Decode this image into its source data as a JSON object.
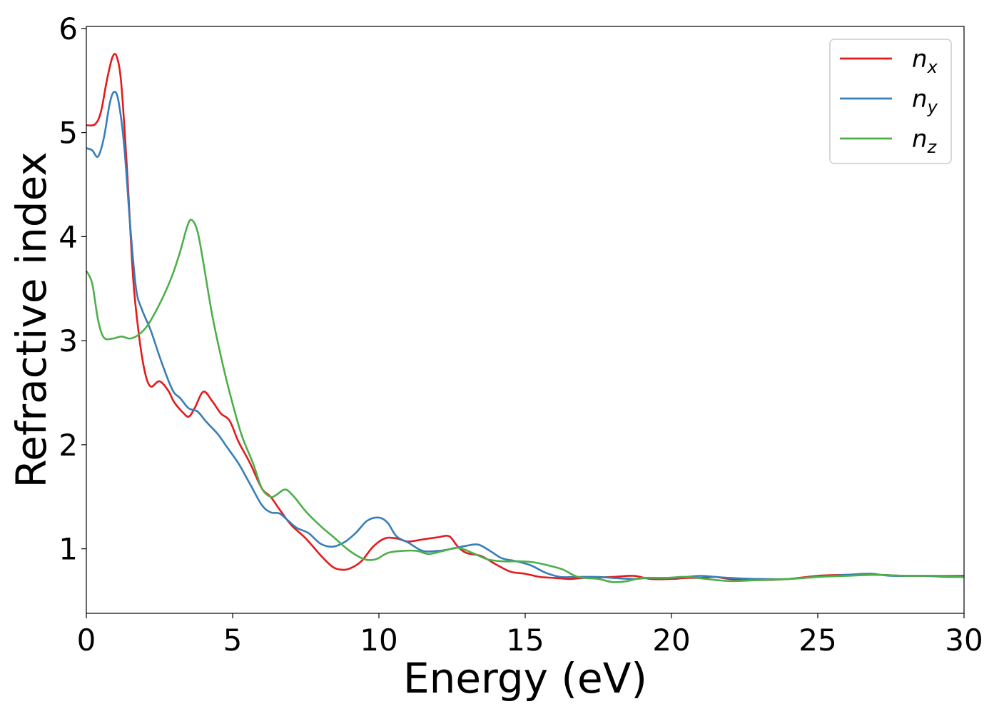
{
  "chart_data": {
    "type": "line",
    "title": "",
    "xlabel": "Energy (eV)",
    "ylabel": "Refractive index",
    "xlim": [
      0,
      30
    ],
    "ylim": [
      0.38,
      6.02
    ],
    "xticks": [
      0,
      5,
      10,
      15,
      20,
      25,
      30
    ],
    "yticks": [
      1,
      2,
      3,
      4,
      5,
      6
    ],
    "grid": false,
    "legend_position": "top-right",
    "series": [
      {
        "name": "n",
        "subscript": "x",
        "color": "#e41a1c",
        "points": [
          [
            0,
            5.07
          ],
          [
            0.3,
            5.08
          ],
          [
            0.5,
            5.2
          ],
          [
            0.7,
            5.5
          ],
          [
            0.9,
            5.73
          ],
          [
            1.05,
            5.72
          ],
          [
            1.2,
            5.45
          ],
          [
            1.4,
            4.6
          ],
          [
            1.6,
            3.6
          ],
          [
            1.8,
            3.05
          ],
          [
            2.0,
            2.7
          ],
          [
            2.2,
            2.56
          ],
          [
            2.5,
            2.61
          ],
          [
            2.8,
            2.52
          ],
          [
            3.0,
            2.41
          ],
          [
            3.3,
            2.31
          ],
          [
            3.5,
            2.27
          ],
          [
            3.7,
            2.35
          ],
          [
            4.0,
            2.51
          ],
          [
            4.3,
            2.42
          ],
          [
            4.6,
            2.3
          ],
          [
            4.9,
            2.23
          ],
          [
            5.2,
            2.03
          ],
          [
            5.6,
            1.82
          ],
          [
            6.0,
            1.58
          ],
          [
            6.3,
            1.5
          ],
          [
            6.6,
            1.38
          ],
          [
            7.0,
            1.23
          ],
          [
            7.5,
            1.1
          ],
          [
            8.0,
            0.94
          ],
          [
            8.4,
            0.83
          ],
          [
            8.7,
            0.8
          ],
          [
            9.0,
            0.81
          ],
          [
            9.4,
            0.88
          ],
          [
            9.8,
            1.02
          ],
          [
            10.2,
            1.1
          ],
          [
            10.6,
            1.1
          ],
          [
            11.0,
            1.07
          ],
          [
            11.5,
            1.09
          ],
          [
            12.0,
            1.11
          ],
          [
            12.4,
            1.12
          ],
          [
            12.7,
            1.02
          ],
          [
            13.0,
            0.96
          ],
          [
            13.5,
            0.93
          ],
          [
            14.0,
            0.85
          ],
          [
            14.5,
            0.78
          ],
          [
            15.0,
            0.76
          ],
          [
            15.5,
            0.73
          ],
          [
            16.0,
            0.72
          ],
          [
            16.5,
            0.71
          ],
          [
            17.0,
            0.72
          ],
          [
            18.0,
            0.73
          ],
          [
            18.7,
            0.74
          ],
          [
            19.3,
            0.71
          ],
          [
            20.0,
            0.71
          ],
          [
            20.5,
            0.72
          ],
          [
            21.0,
            0.72
          ],
          [
            21.5,
            0.73
          ],
          [
            22.0,
            0.71
          ],
          [
            23.0,
            0.7
          ],
          [
            24.0,
            0.71
          ],
          [
            25.0,
            0.74
          ],
          [
            26.0,
            0.75
          ],
          [
            27.0,
            0.75
          ],
          [
            28.0,
            0.74
          ],
          [
            29.0,
            0.74
          ],
          [
            30.0,
            0.74
          ]
        ]
      },
      {
        "name": "n",
        "subscript": "y",
        "color": "#377eb8",
        "points": [
          [
            0,
            4.85
          ],
          [
            0.2,
            4.83
          ],
          [
            0.4,
            4.77
          ],
          [
            0.6,
            4.95
          ],
          [
            0.8,
            5.28
          ],
          [
            0.95,
            5.39
          ],
          [
            1.1,
            5.3
          ],
          [
            1.3,
            4.85
          ],
          [
            1.5,
            4.1
          ],
          [
            1.7,
            3.5
          ],
          [
            1.9,
            3.3
          ],
          [
            2.2,
            3.1
          ],
          [
            2.5,
            2.85
          ],
          [
            2.8,
            2.62
          ],
          [
            3.0,
            2.5
          ],
          [
            3.2,
            2.45
          ],
          [
            3.5,
            2.35
          ],
          [
            3.8,
            2.32
          ],
          [
            4.1,
            2.22
          ],
          [
            4.5,
            2.1
          ],
          [
            4.8,
            1.98
          ],
          [
            5.2,
            1.82
          ],
          [
            5.6,
            1.62
          ],
          [
            6.0,
            1.42
          ],
          [
            6.3,
            1.35
          ],
          [
            6.6,
            1.34
          ],
          [
            6.9,
            1.27
          ],
          [
            7.2,
            1.2
          ],
          [
            7.6,
            1.15
          ],
          [
            8.0,
            1.05
          ],
          [
            8.4,
            1.02
          ],
          [
            8.8,
            1.06
          ],
          [
            9.2,
            1.15
          ],
          [
            9.6,
            1.27
          ],
          [
            10.0,
            1.3
          ],
          [
            10.3,
            1.25
          ],
          [
            10.6,
            1.12
          ],
          [
            11.0,
            1.06
          ],
          [
            11.5,
            0.98
          ],
          [
            12.0,
            0.98
          ],
          [
            12.5,
            1.0
          ],
          [
            13.0,
            1.03
          ],
          [
            13.4,
            1.04
          ],
          [
            13.8,
            0.98
          ],
          [
            14.2,
            0.91
          ],
          [
            14.7,
            0.88
          ],
          [
            15.2,
            0.84
          ],
          [
            15.7,
            0.77
          ],
          [
            16.2,
            0.73
          ],
          [
            16.8,
            0.73
          ],
          [
            17.5,
            0.73
          ],
          [
            18.0,
            0.72
          ],
          [
            18.7,
            0.71
          ],
          [
            19.2,
            0.72
          ],
          [
            20.0,
            0.72
          ],
          [
            20.5,
            0.73
          ],
          [
            21.0,
            0.74
          ],
          [
            21.5,
            0.73
          ],
          [
            22.0,
            0.72
          ],
          [
            23.0,
            0.71
          ],
          [
            24.0,
            0.71
          ],
          [
            25.0,
            0.73
          ],
          [
            26.0,
            0.75
          ],
          [
            26.8,
            0.76
          ],
          [
            27.5,
            0.74
          ],
          [
            28.5,
            0.74
          ],
          [
            29.5,
            0.73
          ],
          [
            30.0,
            0.73
          ]
        ]
      },
      {
        "name": "n",
        "subscript": "z",
        "color": "#4daf4a",
        "points": [
          [
            0,
            3.67
          ],
          [
            0.2,
            3.55
          ],
          [
            0.4,
            3.2
          ],
          [
            0.6,
            3.03
          ],
          [
            0.9,
            3.02
          ],
          [
            1.2,
            3.04
          ],
          [
            1.5,
            3.02
          ],
          [
            1.8,
            3.06
          ],
          [
            2.1,
            3.15
          ],
          [
            2.5,
            3.35
          ],
          [
            2.9,
            3.6
          ],
          [
            3.2,
            3.85
          ],
          [
            3.45,
            4.1
          ],
          [
            3.6,
            4.16
          ],
          [
            3.8,
            4.05
          ],
          [
            4.0,
            3.75
          ],
          [
            4.3,
            3.25
          ],
          [
            4.6,
            2.85
          ],
          [
            4.9,
            2.5
          ],
          [
            5.3,
            2.1
          ],
          [
            5.7,
            1.82
          ],
          [
            6.0,
            1.58
          ],
          [
            6.3,
            1.5
          ],
          [
            6.5,
            1.52
          ],
          [
            6.8,
            1.57
          ],
          [
            7.1,
            1.5
          ],
          [
            7.5,
            1.36
          ],
          [
            8.0,
            1.22
          ],
          [
            8.5,
            1.1
          ],
          [
            9.0,
            0.98
          ],
          [
            9.5,
            0.9
          ],
          [
            9.9,
            0.9
          ],
          [
            10.3,
            0.96
          ],
          [
            10.8,
            0.98
          ],
          [
            11.3,
            0.98
          ],
          [
            11.7,
            0.95
          ],
          [
            12.2,
            0.98
          ],
          [
            12.7,
            1.01
          ],
          [
            13.2,
            0.96
          ],
          [
            13.7,
            0.9
          ],
          [
            14.2,
            0.88
          ],
          [
            14.8,
            0.88
          ],
          [
            15.3,
            0.87
          ],
          [
            15.8,
            0.84
          ],
          [
            16.3,
            0.8
          ],
          [
            16.8,
            0.73
          ],
          [
            17.5,
            0.71
          ],
          [
            18.0,
            0.68
          ],
          [
            18.5,
            0.69
          ],
          [
            19.0,
            0.72
          ],
          [
            19.8,
            0.72
          ],
          [
            20.5,
            0.73
          ],
          [
            21.2,
            0.71
          ],
          [
            22.0,
            0.69
          ],
          [
            23.0,
            0.7
          ],
          [
            24.0,
            0.71
          ],
          [
            25.0,
            0.73
          ],
          [
            26.0,
            0.74
          ],
          [
            27.0,
            0.75
          ],
          [
            28.0,
            0.74
          ],
          [
            29.0,
            0.74
          ],
          [
            30.0,
            0.73
          ]
        ]
      }
    ]
  }
}
